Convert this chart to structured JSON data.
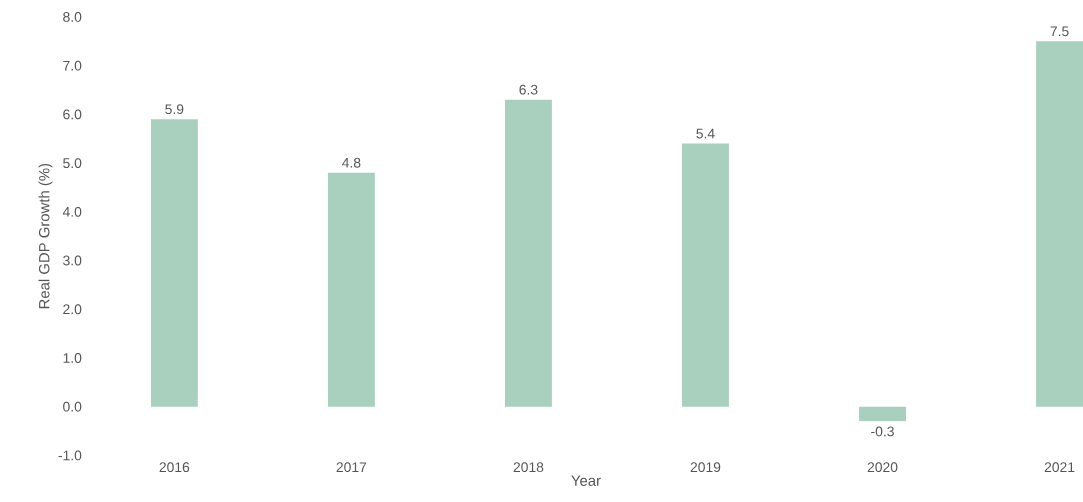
{
  "chart_data": {
    "type": "bar",
    "xlabel": "Year",
    "ylabel": "Real GDP Growth (%)",
    "categories": [
      "2016",
      "2017",
      "2018",
      "2019",
      "2020",
      "2021"
    ],
    "values": [
      5.9,
      4.8,
      6.3,
      5.4,
      -0.3,
      7.5
    ],
    "color": "#a9cfbf",
    "ylim": [
      -1,
      8
    ],
    "yticks": [
      {
        "value": -1,
        "label": "-1.0"
      },
      {
        "value": 0,
        "label": "0.0"
      },
      {
        "value": 1,
        "label": "1.0"
      },
      {
        "value": 2,
        "label": "2.0"
      },
      {
        "value": 3,
        "label": "3.0"
      },
      {
        "value": 4,
        "label": "4.0"
      },
      {
        "value": 5,
        "label": "5.0"
      },
      {
        "value": 6,
        "label": "6.0"
      },
      {
        "value": 7,
        "label": "7.0"
      },
      {
        "value": 8,
        "label": "8.0"
      }
    ],
    "data_labels": true
  }
}
